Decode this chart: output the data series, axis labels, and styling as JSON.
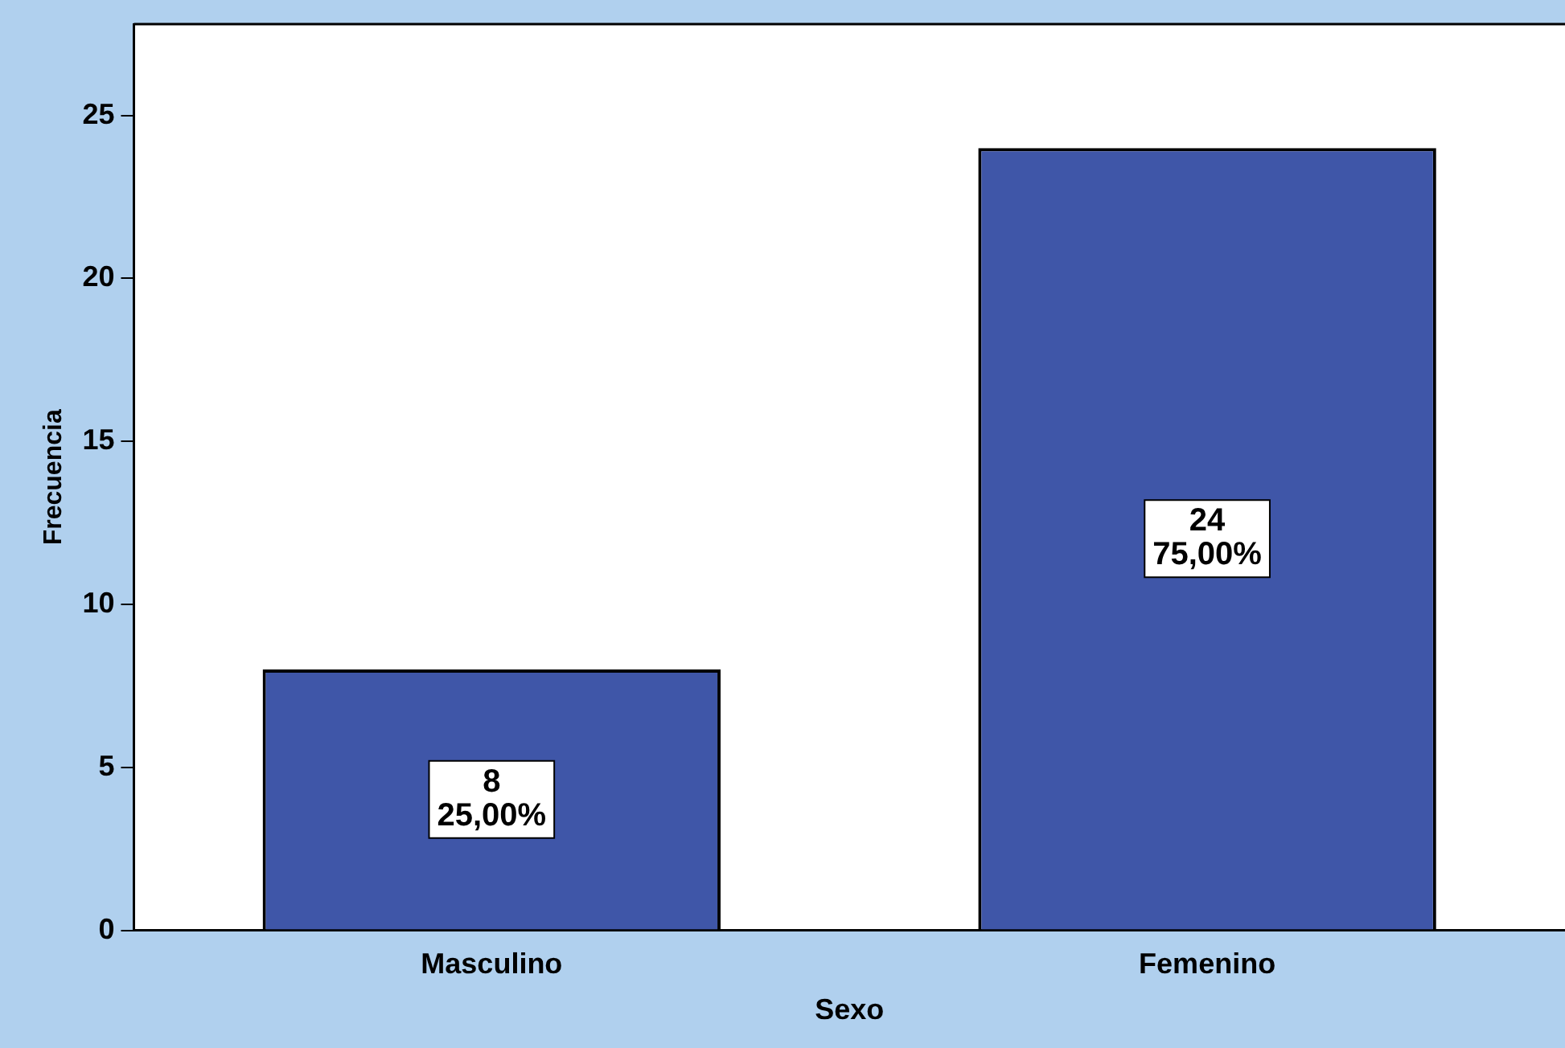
{
  "chart_data": {
    "type": "bar",
    "xlabel": "Sexo",
    "ylabel": "Frecuencia",
    "categories": [
      "Masculino",
      "Femenino"
    ],
    "values": [
      8,
      24
    ],
    "value_labels": [
      "8\n25,00%",
      "24\n75,00%"
    ],
    "color": "#3f56a8",
    "ylim": [
      0,
      27.8
    ],
    "yticks": [
      0,
      5,
      10,
      15,
      20,
      25
    ],
    "grid": false,
    "legend": false
  }
}
